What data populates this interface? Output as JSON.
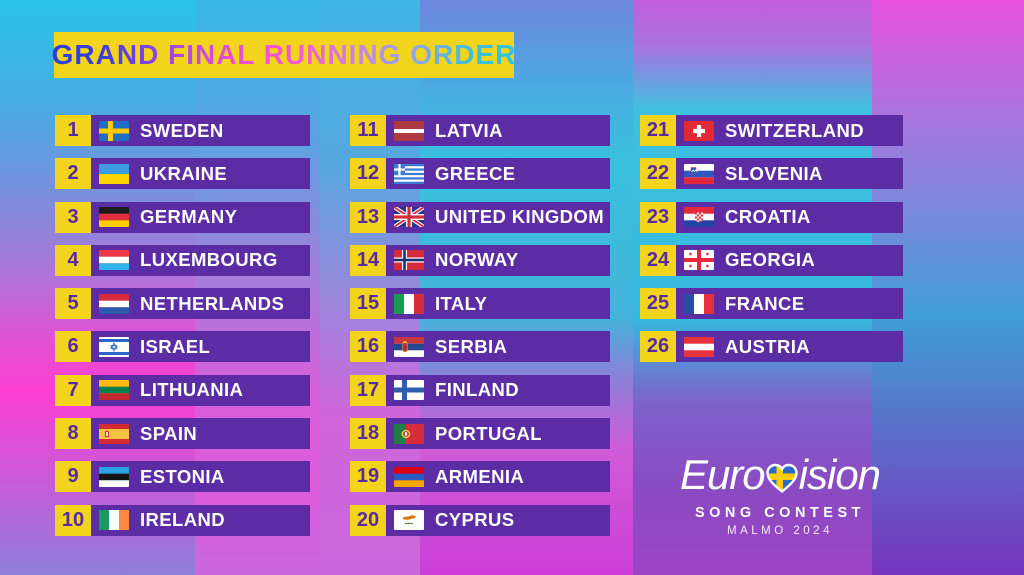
{
  "title": "GRAND FINAL RUNNING ORDER",
  "colors": {
    "banner_yellow": "#f2d41d",
    "bar_purple": "#5c2ca5",
    "number_purple": "#5a2b9e",
    "label_white": "#ffffff",
    "title_gradient": [
      "#2840d8",
      "#3f3eda",
      "#8c46e0",
      "#d04cdc",
      "#f84fd2",
      "#f060cc",
      "#c488e2",
      "#93a5e6",
      "#47bcd8",
      "#2cc5dc"
    ],
    "background_hues": [
      "#2ac4e6",
      "#fb3ed1",
      "#8e7fd8",
      "#38c1de",
      "#cc3ed6",
      "#e850e0",
      "#7633bd"
    ]
  },
  "entries": [
    {
      "num": "1",
      "country": "SWEDEN",
      "flag": "se"
    },
    {
      "num": "2",
      "country": "UKRAINE",
      "flag": "ua"
    },
    {
      "num": "3",
      "country": "GERMANY",
      "flag": "de"
    },
    {
      "num": "4",
      "country": "LUXEMBOURG",
      "flag": "lu"
    },
    {
      "num": "5",
      "country": "NETHERLANDS",
      "flag": "nl"
    },
    {
      "num": "6",
      "country": "ISRAEL",
      "flag": "il"
    },
    {
      "num": "7",
      "country": "LITHUANIA",
      "flag": "lt"
    },
    {
      "num": "8",
      "country": "SPAIN",
      "flag": "es"
    },
    {
      "num": "9",
      "country": "ESTONIA",
      "flag": "ee"
    },
    {
      "num": "10",
      "country": "IRELAND",
      "flag": "ie"
    },
    {
      "num": "11",
      "country": "LATVIA",
      "flag": "lv"
    },
    {
      "num": "12",
      "country": "GREECE",
      "flag": "gr"
    },
    {
      "num": "13",
      "country": "UNITED KINGDOM",
      "flag": "gb"
    },
    {
      "num": "14",
      "country": "NORWAY",
      "flag": "no"
    },
    {
      "num": "15",
      "country": "ITALY",
      "flag": "it"
    },
    {
      "num": "16",
      "country": "SERBIA",
      "flag": "rs"
    },
    {
      "num": "17",
      "country": "FINLAND",
      "flag": "fi"
    },
    {
      "num": "18",
      "country": "PORTUGAL",
      "flag": "pt"
    },
    {
      "num": "19",
      "country": "ARMENIA",
      "flag": "am"
    },
    {
      "num": "20",
      "country": "CYPRUS",
      "flag": "cy"
    },
    {
      "num": "21",
      "country": "SWITZERLAND",
      "flag": "ch"
    },
    {
      "num": "22",
      "country": "SLOVENIA",
      "flag": "si"
    },
    {
      "num": "23",
      "country": "CROATIA",
      "flag": "hr"
    },
    {
      "num": "24",
      "country": "GEORGIA",
      "flag": "ge"
    },
    {
      "num": "25",
      "country": "FRANCE",
      "flag": "fr"
    },
    {
      "num": "26",
      "country": "AUSTRIA",
      "flag": "at"
    }
  ],
  "logo": {
    "wordmark_pre": "Euro",
    "wordmark_post": "ision",
    "line2": "SONG CONTEST",
    "line3": "MALMÖ 2024"
  }
}
